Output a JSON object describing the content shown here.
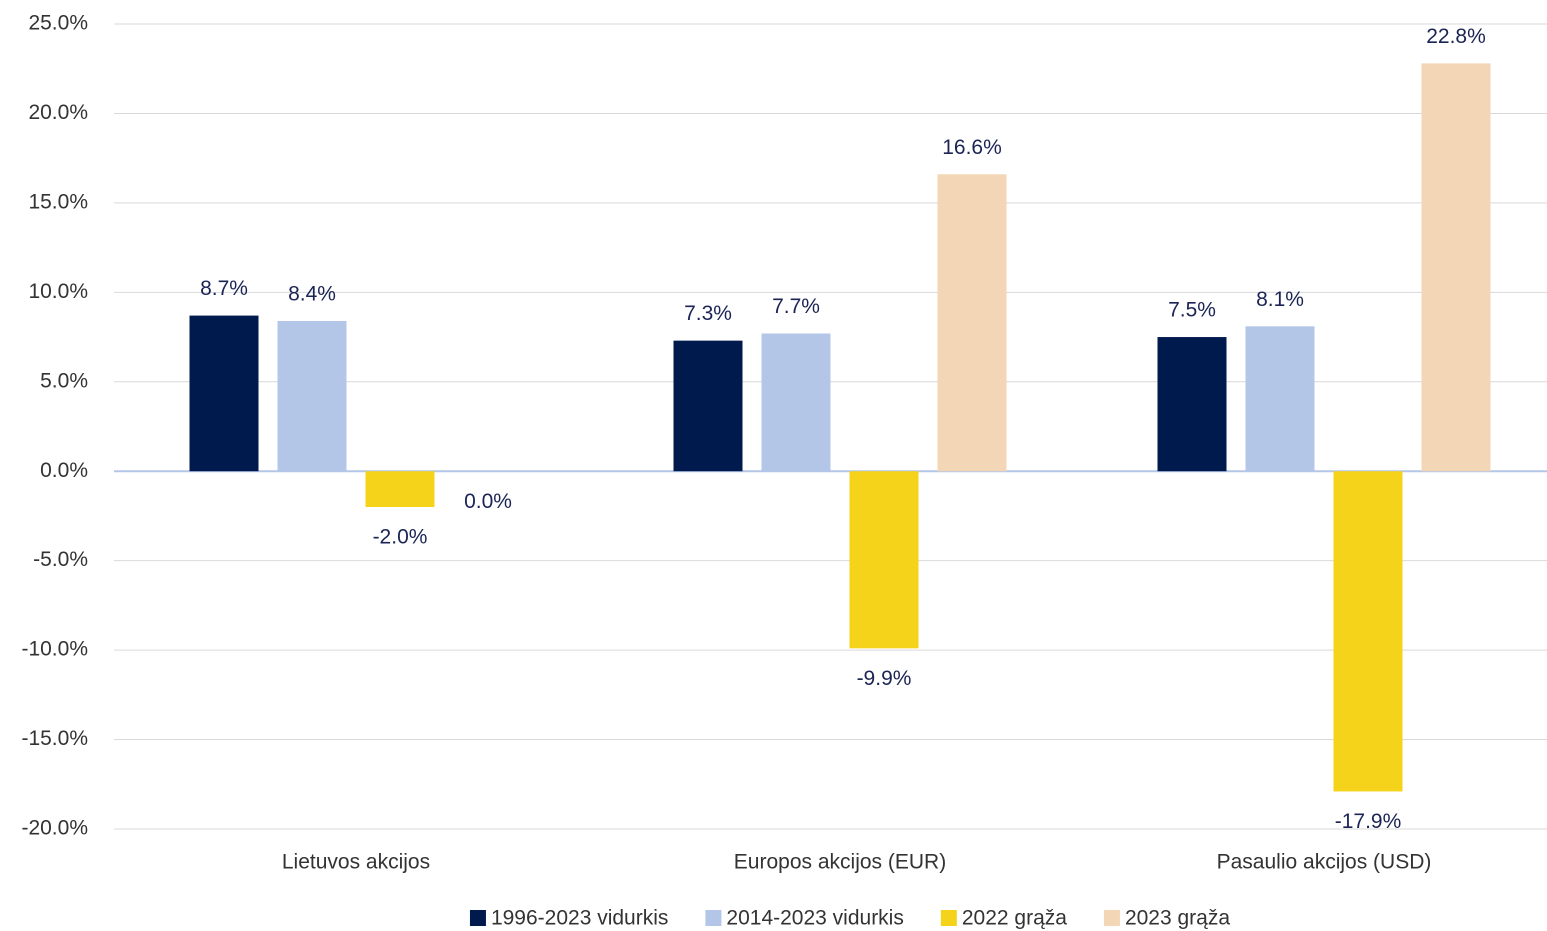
{
  "chart_data": {
    "type": "bar",
    "categories": [
      "Lietuvos akcijos",
      "Europos akcijos (EUR)",
      "Pasaulio akcijos (USD)"
    ],
    "series": [
      {
        "name": "1996-2023 vidurkis",
        "color": "#001a4e",
        "values": [
          8.7,
          7.3,
          7.5
        ],
        "value_labels": [
          "8.7%",
          "7.3%",
          "7.5%"
        ]
      },
      {
        "name": "2014-2023 vidurkis",
        "color": "#b4c6e7",
        "values": [
          8.4,
          7.7,
          8.1
        ],
        "value_labels": [
          "8.4%",
          "7.7%",
          "8.1%"
        ]
      },
      {
        "name": "2022 grąža",
        "color": "#f5d31b",
        "values": [
          -2.0,
          -9.9,
          -17.9
        ],
        "value_labels": [
          "-2.0%",
          "-9.9%",
          "-17.9%"
        ]
      },
      {
        "name": "2023 grąža",
        "color": "#f3d6b6",
        "values": [
          0.0,
          16.6,
          22.8
        ],
        "value_labels": [
          "0.0%",
          "16.6%",
          "22.8%"
        ]
      }
    ],
    "ylim": [
      -20,
      25
    ],
    "yticks": [
      {
        "value": -20,
        "label": "-20.0%"
      },
      {
        "value": -15,
        "label": "-15.0%"
      },
      {
        "value": -10,
        "label": "-10.0%"
      },
      {
        "value": -5,
        "label": "-5.0%"
      },
      {
        "value": 0,
        "label": "0.0%"
      },
      {
        "value": 5,
        "label": "5.0%"
      },
      {
        "value": 10,
        "label": "10.0%"
      },
      {
        "value": 15,
        "label": "15.0%"
      },
      {
        "value": 20,
        "label": "20.0%"
      },
      {
        "value": 25,
        "label": "25.0%"
      }
    ],
    "grid": true,
    "legend": "bottom"
  }
}
